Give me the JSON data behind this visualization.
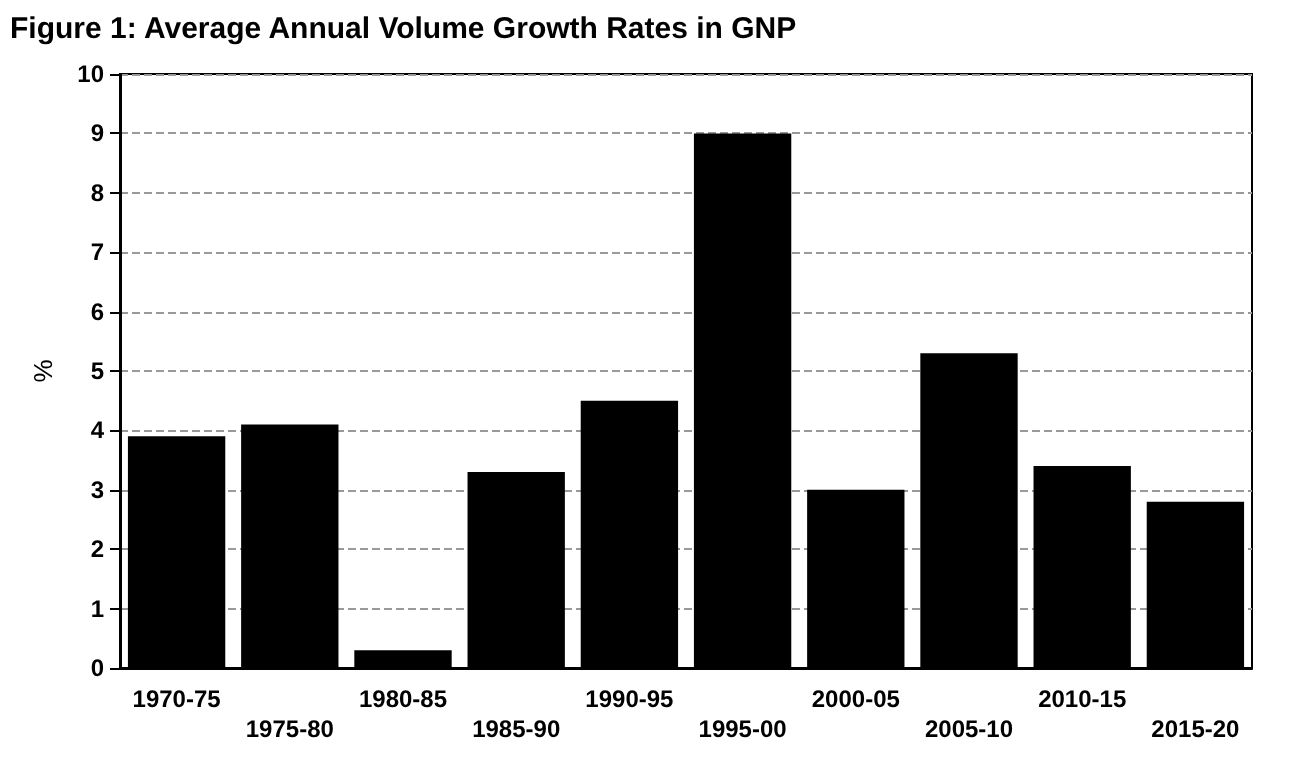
{
  "chart_data": {
    "type": "bar",
    "title": "Figure 1: Average Annual Volume Growth Rates in GNP",
    "ylabel": "%",
    "categories": [
      "1970-75",
      "1975-80",
      "1980-85",
      "1985-90",
      "1990-95",
      "1995-00",
      "2000-05",
      "2005-10",
      "2010-15",
      "2015-20"
    ],
    "values": [
      3.9,
      4.1,
      0.3,
      3.3,
      4.5,
      9.0,
      3.0,
      5.3,
      3.4,
      2.8
    ],
    "color": "#000000",
    "ylim": [
      0,
      10
    ],
    "yticks": [
      0,
      1,
      2,
      3,
      4,
      5,
      6,
      7,
      8,
      9,
      10
    ],
    "grid": "y"
  }
}
